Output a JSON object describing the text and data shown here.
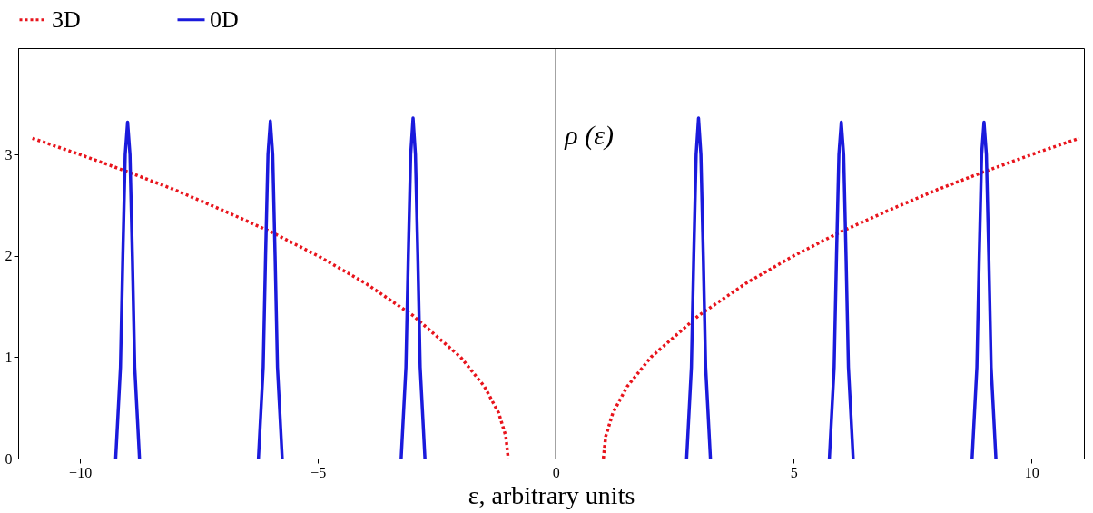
{
  "chart_data": {
    "type": "line",
    "xlabel": "ε, arbitrary units",
    "ylabel": "ρ (ε)",
    "xlim": [
      -11.3,
      11.1
    ],
    "ylim": [
      0,
      4.05
    ],
    "xticks": [
      -10,
      -5,
      0,
      5,
      10
    ],
    "yticks": [
      0,
      1,
      2,
      3
    ],
    "grid": false,
    "legend": "top",
    "marker": "none",
    "ref_lines": [
      {
        "axis": "x",
        "value": 0,
        "color": "#000000",
        "line_style": "solid"
      }
    ],
    "series": [
      {
        "name": "3D",
        "color": "#e8141c",
        "line_style": "dotted",
        "x": [
          -11,
          -10,
          -9,
          -8,
          -7,
          -6,
          -5,
          -4,
          -3,
          -2,
          -1.5,
          -1.2,
          -1.05,
          -1,
          0,
          1,
          1.05,
          1.2,
          1.5,
          2,
          3,
          4,
          5,
          6,
          7,
          8,
          9,
          10,
          11
        ],
        "values": [
          3.16,
          3.0,
          2.83,
          2.65,
          2.45,
          2.24,
          2.0,
          1.73,
          1.41,
          1.0,
          0.71,
          0.45,
          0.22,
          0,
          null,
          0,
          0.22,
          0.45,
          0.71,
          1.0,
          1.41,
          1.73,
          2.0,
          2.24,
          2.45,
          2.65,
          2.83,
          3.0,
          3.16
        ]
      },
      {
        "name": "0D",
        "color": "#1a1adc",
        "line_style": "solid",
        "x": [
          -9.25,
          -9.15,
          -9.1,
          -9.05,
          -9,
          -8.95,
          -8.9,
          -8.85,
          -8.75,
          -7.5,
          -6.25,
          -6.15,
          -6.1,
          -6.05,
          -6,
          -5.95,
          -5.9,
          -5.85,
          -5.75,
          -4.5,
          -3.25,
          -3.15,
          -3.1,
          -3.05,
          -3,
          -2.95,
          -2.9,
          -2.85,
          -2.75,
          0,
          2.75,
          2.85,
          2.9,
          2.95,
          3,
          3.05,
          3.1,
          3.15,
          3.25,
          4.5,
          5.75,
          5.85,
          5.9,
          5.95,
          6,
          6.05,
          6.1,
          6.15,
          6.25,
          7.5,
          8.75,
          8.85,
          8.9,
          8.95,
          9,
          9.05,
          9.1,
          9.15,
          9.25
        ],
        "values": [
          0,
          0.9,
          2.0,
          3.0,
          3.32,
          3.0,
          2.0,
          0.9,
          0,
          null,
          0,
          0.9,
          2.0,
          3.0,
          3.33,
          3.0,
          2.0,
          0.9,
          0,
          null,
          0,
          0.9,
          2.0,
          3.0,
          3.36,
          3.0,
          2.0,
          0.9,
          0,
          null,
          0,
          0.9,
          2.0,
          3.0,
          3.36,
          3.0,
          2.0,
          0.9,
          0,
          null,
          0,
          0.9,
          2.0,
          3.0,
          3.32,
          3.0,
          2.0,
          0.9,
          0,
          null,
          0,
          0.9,
          2.0,
          3.0,
          3.32,
          3.0,
          2.0,
          0.9,
          0
        ]
      }
    ]
  }
}
